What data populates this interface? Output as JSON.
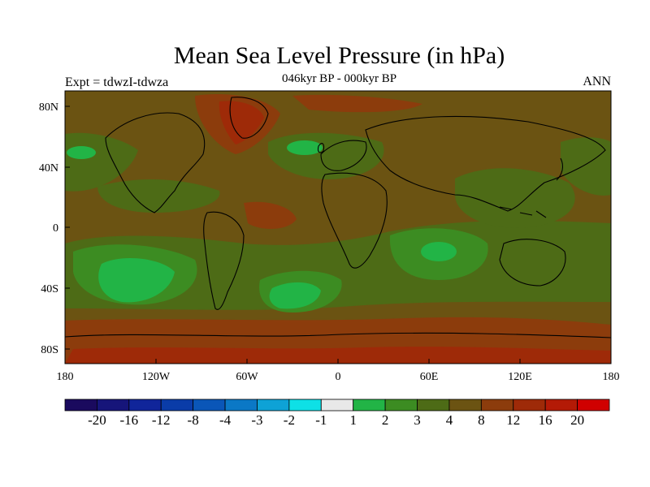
{
  "title": "Mean Sea Level Pressure (in hPa)",
  "subtitle": "046kyr BP - 000kyr BP",
  "experiment": "Expt = tdwzI-tdwza",
  "season": "ANN",
  "lat_ticks": [
    "80N",
    "40N",
    "0",
    "40S",
    "80S"
  ],
  "lon_ticks": [
    "180",
    "120W",
    "60W",
    "0",
    "60E",
    "120E",
    "180"
  ],
  "colorbar": {
    "colors": [
      "#1a0a5e",
      "#16157a",
      "#10259a",
      "#0a3ca8",
      "#0a56b8",
      "#0b78c6",
      "#0ea2d6",
      "#0ee0e6",
      "#e8e8e8",
      "#22b446",
      "#3c8c22",
      "#4d6b16",
      "#6b5312",
      "#8c3c0c",
      "#9e2a08",
      "#b41a06",
      "#d00000"
    ],
    "labels": [
      "-20",
      "-16",
      "-12",
      "-8",
      "-4",
      "-3",
      "-2",
      "-1",
      "1",
      "2",
      "3",
      "4",
      "8",
      "12",
      "16",
      "20"
    ]
  },
  "colors": {
    "background_field": "#6b5312",
    "green_field": "#4d6b16",
    "bright_green": "#22b446",
    "mid_green": "#3c8c22",
    "red_field": "#8c3c0c",
    "deep_red": "#9e2a08"
  }
}
